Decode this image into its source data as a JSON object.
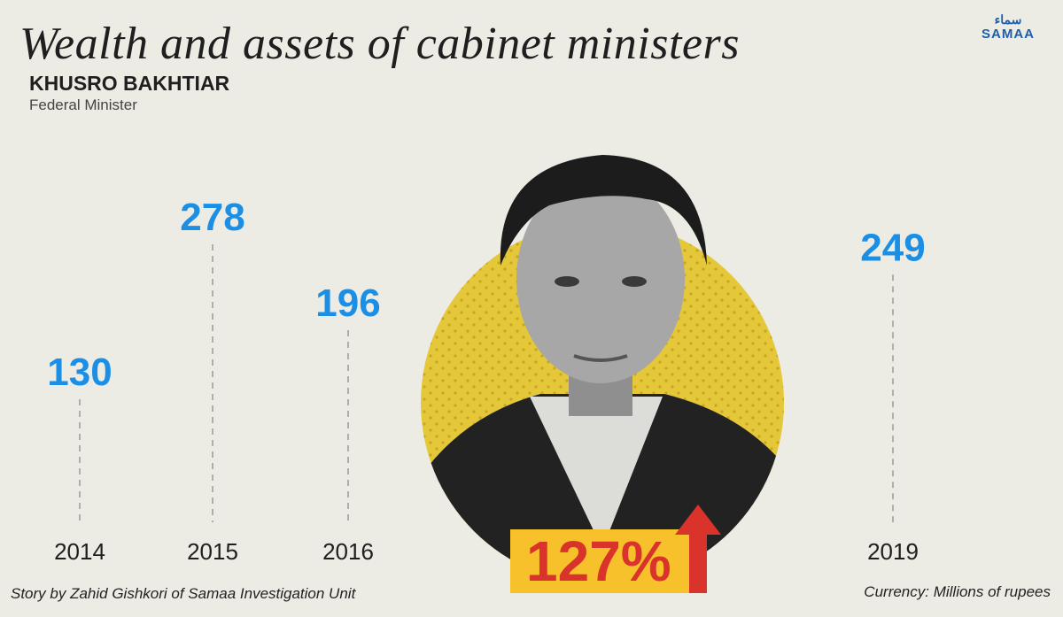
{
  "header": {
    "title": "Wealth and assets of cabinet ministers",
    "name": "KHUSRO BAKHTIAR",
    "role": "Federal Minister"
  },
  "logo": {
    "text": "SAMAA",
    "script": "سماء"
  },
  "colors": {
    "value": "#1b8fe6",
    "circle": "#e5c73a",
    "badge": "#f6c12a",
    "badge_text": "#d9332b",
    "background": "#ecebe4"
  },
  "chart_data": {
    "type": "scatter",
    "categories": [
      "2014",
      "2015",
      "2016",
      "2019"
    ],
    "values": [
      130,
      278,
      196,
      249
    ],
    "annotations": [
      "127%"
    ],
    "grid": false
  },
  "highlight": {
    "percent": "127%",
    "direction": "up"
  },
  "footer": {
    "credit": "Story by Zahid Gishkori of Samaa Investigation Unit",
    "currency": "Currency: Millions of rupees"
  }
}
